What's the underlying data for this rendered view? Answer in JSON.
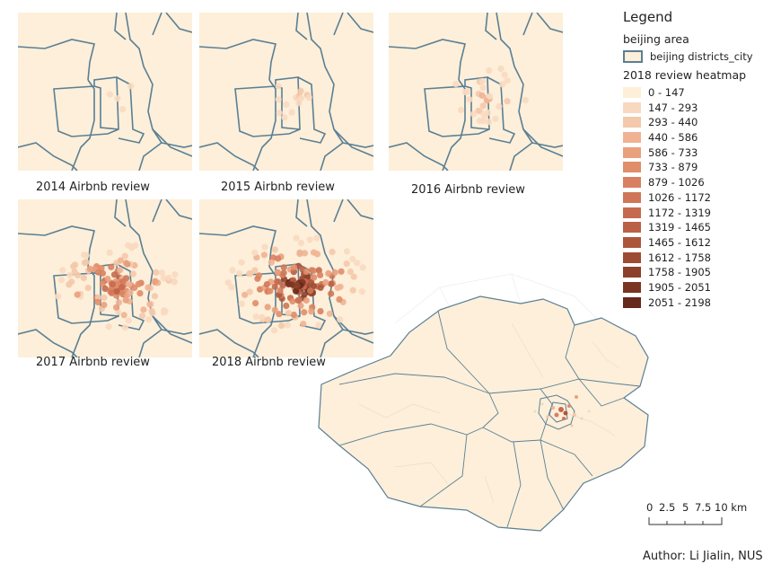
{
  "panels": [
    {
      "caption": "2014 Airbnb review",
      "year": 2014
    },
    {
      "caption": "2015 Airbnb review",
      "year": 2015
    },
    {
      "caption": "2016 Airbnb review",
      "year": 2016
    },
    {
      "caption": "2017 Airbnb review",
      "year": 2017
    },
    {
      "caption": "2018 Airbnb review",
      "year": 2018
    }
  ],
  "legend": {
    "title": "Legend",
    "group_label": "beijing area",
    "districts_label": "beijing districts_city",
    "heatmap_label": "2018 review heatmap",
    "classes": [
      {
        "label": "0 - 147",
        "color": "#fdefd9"
      },
      {
        "label": "147 - 293",
        "color": "#f8d9c0"
      },
      {
        "label": "293 - 440",
        "color": "#f4c8aa"
      },
      {
        "label": "440 - 586",
        "color": "#efb393"
      },
      {
        "label": "586 - 733",
        "color": "#e9a07d"
      },
      {
        "label": "733 - 879",
        "color": "#e08d69"
      },
      {
        "label": "879 - 1026",
        "color": "#d88061"
      },
      {
        "label": "1026 - 1172",
        "color": "#cf7558"
      },
      {
        "label": "1172 - 1319",
        "color": "#c56a4f"
      },
      {
        "label": "1319 - 1465",
        "color": "#ba6046"
      },
      {
        "label": "1465 - 1612",
        "color": "#ad563c"
      },
      {
        "label": "1612 - 1758",
        "color": "#9e4b33"
      },
      {
        "label": "1758 - 1905",
        "color": "#8c402a"
      },
      {
        "label": "1905 - 2051",
        "color": "#7a3522"
      },
      {
        "label": "2051 - 2198",
        "color": "#66291a"
      }
    ]
  },
  "scale_bar": {
    "ticks": [
      "0",
      "2.5",
      "5",
      "7.5",
      "10 km"
    ]
  },
  "author": "Author: Li Jialin, NUS",
  "colors": {
    "land": "#fdefd9",
    "boundary": "#5a7f95",
    "background": "#ffffff"
  }
}
